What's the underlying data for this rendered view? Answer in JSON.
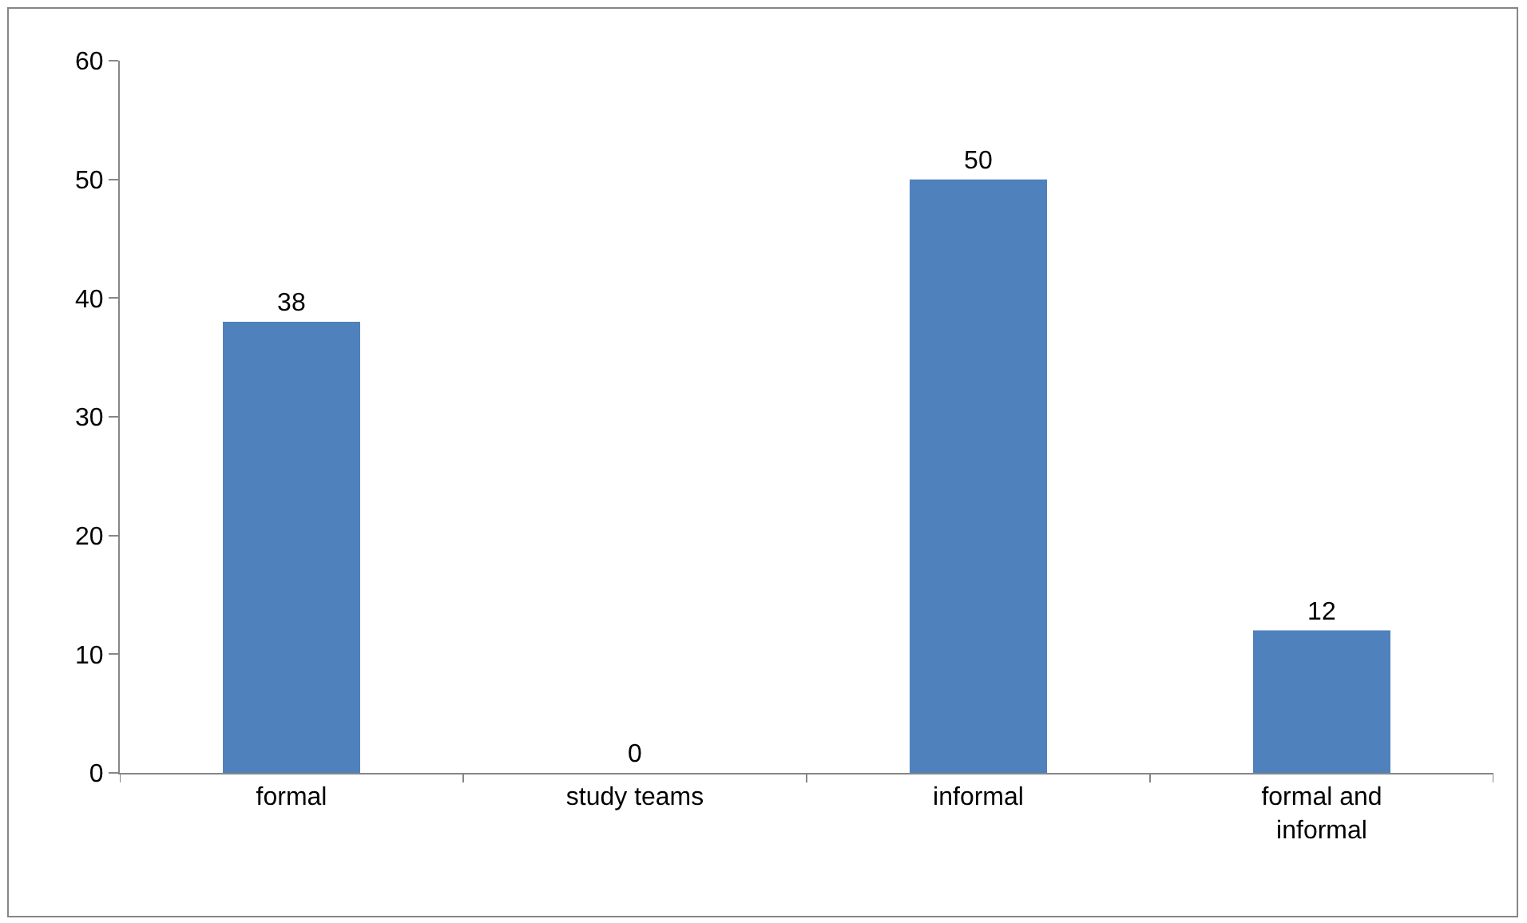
{
  "chart_data": {
    "type": "bar",
    "categories": [
      "formal",
      "study teams",
      "informal",
      "formal and informal"
    ],
    "values": [
      38,
      0,
      50,
      12
    ],
    "color": "#4f81bd",
    "ylim": [
      0,
      60
    ],
    "yticks": [
      0,
      10,
      20,
      30,
      40,
      50,
      60
    ],
    "data_labels": true,
    "grid": false,
    "legend": false
  }
}
